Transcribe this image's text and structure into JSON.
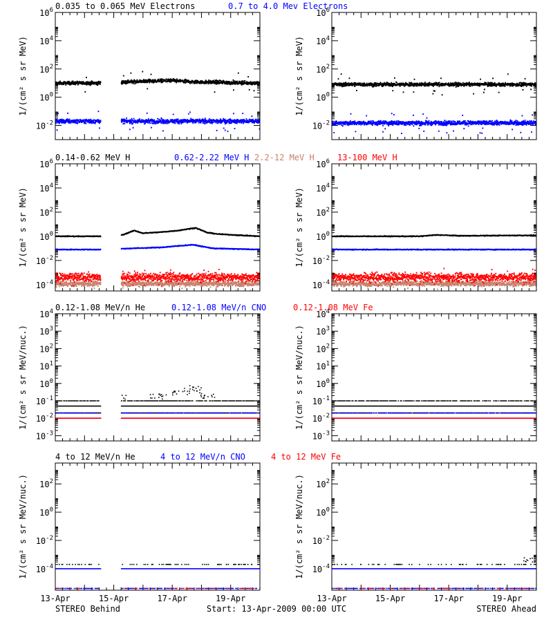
{
  "colors": {
    "black": "#000000",
    "blue": "#0000ff",
    "tan": "#c8826e",
    "red": "#ff0000"
  },
  "footer": {
    "left": "STEREO Behind",
    "center": "Start: 13-Apr-2009 00:00 UTC",
    "right": "STEREO Ahead"
  },
  "chart_data": [
    {
      "type": "scatter",
      "panel": "electrons-behind",
      "title_parts": [
        {
          "text": "0.035 to 0.065 MeV Electrons",
          "color": "black"
        },
        {
          "text": "0.7 to 4.0 Mev Electrons",
          "color": "blue"
        }
      ],
      "ylabel": "1/(cm² s sr MeV)",
      "ylog": true,
      "ylim": [
        0.001,
        1000000
      ],
      "yticks": [
        {
          "v": 0.01,
          "label": "10^-2"
        },
        {
          "v": 1,
          "label": "10^0"
        },
        {
          "v": 100,
          "label": "10^2"
        },
        {
          "v": 10000,
          "label": "10^4"
        },
        {
          "v": 1000000,
          "label": "10^6"
        }
      ],
      "xlim_days": [
        0,
        7
      ],
      "xticks": [],
      "series": [
        {
          "name": "0.035 to 0.065 MeV Electrons",
          "color": "black",
          "style": "band",
          "y": [
            [
              0,
              10
            ],
            [
              1.5,
              10
            ],
            [
              2.4,
              12
            ],
            [
              3.2,
              14
            ],
            [
              4.0,
              15
            ],
            [
              4.8,
              12
            ],
            [
              7,
              10
            ]
          ],
          "scatter": 0.12,
          "gaps": [
            [
              1.55,
              2.25
            ]
          ]
        },
        {
          "name": "0.7 to 4.0 Mev Electrons",
          "color": "blue",
          "style": "band",
          "y": [
            [
              0,
              0.02
            ],
            [
              7,
              0.02
            ]
          ],
          "scatter": 0.15,
          "gaps": [
            [
              1.55,
              2.25
            ]
          ]
        }
      ]
    },
    {
      "type": "scatter",
      "panel": "electrons-ahead",
      "ylabel": "1/(cm² s sr MeV)",
      "ylog": true,
      "ylim": [
        0.001,
        1000000
      ],
      "yticks": [
        {
          "v": 0.01,
          "label": "10^-2"
        },
        {
          "v": 1,
          "label": "10^0"
        },
        {
          "v": 100,
          "label": "10^2"
        },
        {
          "v": 10000,
          "label": "10^4"
        },
        {
          "v": 1000000,
          "label": "10^6"
        }
      ],
      "xlim_days": [
        0,
        7
      ],
      "xticks": [],
      "series": [
        {
          "name": "0.035 to 0.065 MeV Electrons",
          "color": "black",
          "style": "band",
          "y": [
            [
              0,
              8
            ],
            [
              7,
              8
            ]
          ],
          "scatter": 0.12,
          "gaps": []
        },
        {
          "name": "0.7 to 4.0 Mev Electrons",
          "color": "blue",
          "style": "band",
          "y": [
            [
              0,
              0.015
            ],
            [
              7,
              0.015
            ]
          ],
          "scatter": 0.15,
          "gaps": []
        }
      ]
    },
    {
      "type": "scatter",
      "panel": "protons-behind",
      "title_parts": [
        {
          "text": "0.14-0.62 MeV H",
          "color": "black"
        },
        {
          "text": "0.62-2.22 MeV H",
          "color": "blue"
        },
        {
          "text": "2.2-12 MeV H",
          "color": "tan"
        },
        {
          "text": "13-100 MeV H",
          "color": "red"
        }
      ],
      "ylabel": "1/(cm² s sr MeV)",
      "ylog": true,
      "ylim": [
        3e-05,
        1000000
      ],
      "yticks": [
        {
          "v": 0.0001,
          "label": "10^-4"
        },
        {
          "v": 0.01,
          "label": "10^-2"
        },
        {
          "v": 1,
          "label": "10^0"
        },
        {
          "v": 100,
          "label": "10^2"
        },
        {
          "v": 10000,
          "label": "10^4"
        },
        {
          "v": 1000000,
          "label": "10^6"
        }
      ],
      "xlim_days": [
        0,
        7
      ],
      "xticks": [],
      "series": [
        {
          "name": "0.14-0.62 MeV H",
          "color": "black",
          "style": "line",
          "y": [
            [
              0,
              1
            ],
            [
              1.5,
              1
            ],
            [
              2.3,
              1.3
            ],
            [
              2.7,
              3
            ],
            [
              3.0,
              1.8
            ],
            [
              3.6,
              2.2
            ],
            [
              4.2,
              3
            ],
            [
              4.8,
              5
            ],
            [
              5.2,
              2
            ],
            [
              5.6,
              1.5
            ],
            [
              7,
              1
            ]
          ],
          "gaps": [
            [
              1.55,
              2.25
            ]
          ]
        },
        {
          "name": "0.62-2.22 MeV H",
          "color": "blue",
          "style": "line",
          "y": [
            [
              0,
              0.08
            ],
            [
              1.5,
              0.08
            ],
            [
              2.6,
              0.1
            ],
            [
              3.6,
              0.12
            ],
            [
              4.7,
              0.2
            ],
            [
              5.4,
              0.1
            ],
            [
              7,
              0.08
            ]
          ],
          "gaps": [
            [
              1.55,
              2.25
            ]
          ]
        },
        {
          "name": "2.2-12 MeV H",
          "color": "tan",
          "style": "band",
          "y": [
            [
              0,
              0.00012
            ],
            [
              7,
              0.00012
            ]
          ],
          "scatter": 0.2,
          "gaps": [
            [
              1.55,
              2.25
            ]
          ]
        },
        {
          "name": "13-100 MeV H",
          "color": "red",
          "style": "band",
          "y": [
            [
              0,
              0.0004
            ],
            [
              7,
              0.0004
            ]
          ],
          "scatter": 0.35,
          "gaps": [
            [
              1.55,
              2.25
            ]
          ]
        }
      ]
    },
    {
      "type": "scatter",
      "panel": "protons-ahead",
      "ylabel": "1/(cm² s sr MeV)",
      "ylog": true,
      "ylim": [
        3e-05,
        1000000
      ],
      "yticks": [
        {
          "v": 0.0001,
          "label": "10^-4"
        },
        {
          "v": 0.01,
          "label": "10^-2"
        },
        {
          "v": 1,
          "label": "10^0"
        },
        {
          "v": 100,
          "label": "10^2"
        },
        {
          "v": 10000,
          "label": "10^4"
        },
        {
          "v": 1000000,
          "label": "10^6"
        }
      ],
      "xlim_days": [
        0,
        7
      ],
      "xticks": [],
      "series": [
        {
          "name": "0.14-0.62 MeV H",
          "color": "black",
          "style": "line",
          "y": [
            [
              0,
              1
            ],
            [
              3,
              1
            ],
            [
              3.6,
              1.3
            ],
            [
              4.4,
              1.1
            ],
            [
              7,
              1.2
            ]
          ],
          "gaps": []
        },
        {
          "name": "0.62-2.22 MeV H",
          "color": "blue",
          "style": "line",
          "y": [
            [
              0,
              0.08
            ],
            [
              7,
              0.08
            ]
          ],
          "gaps": []
        },
        {
          "name": "2.2-12 MeV H",
          "color": "tan",
          "style": "band",
          "y": [
            [
              0,
              0.00012
            ],
            [
              7,
              0.00012
            ]
          ],
          "scatter": 0.2,
          "gaps": []
        },
        {
          "name": "13-100 MeV H",
          "color": "red",
          "style": "band",
          "y": [
            [
              0,
              0.0004
            ],
            [
              7,
              0.0004
            ]
          ],
          "scatter": 0.35,
          "gaps": []
        }
      ]
    },
    {
      "type": "scatter",
      "panel": "heavy-ions-low-behind",
      "title_parts": [
        {
          "text": "0.12-1.08 MeV/n He",
          "color": "black"
        },
        {
          "text": "0.12-1.08 MeV/n CNO",
          "color": "blue"
        },
        {
          "text": "0.12-1.08 MeV Fe",
          "color": "red"
        }
      ],
      "ylabel": "1/(cm² s sr MeV/nuc.)",
      "ylog": true,
      "ylim": [
        0.0005,
        10000
      ],
      "yticks": [
        {
          "v": 0.001,
          "label": "10^-3"
        },
        {
          "v": 0.01,
          "label": "10^-2"
        },
        {
          "v": 0.1,
          "label": "10^-1"
        },
        {
          "v": 1,
          "label": "10^0"
        },
        {
          "v": 10,
          "label": "10^1"
        },
        {
          "v": 100,
          "label": "10^2"
        },
        {
          "v": 1000,
          "label": "10^3"
        },
        {
          "v": 10000,
          "label": "10^4"
        }
      ],
      "xlim_days": [
        0,
        7
      ],
      "xticks": [],
      "series": [
        {
          "name": "0.12-1.08 MeV/n He",
          "color": "black",
          "style": "levels",
          "levels": [
            0.05,
            0.1,
            0.02
          ],
          "extra": [
            [
              2.2,
              0.15
            ],
            [
              3.5,
              0.18
            ],
            [
              4.3,
              0.3
            ],
            [
              4.7,
              0.5
            ],
            [
              5.2,
              0.2
            ]
          ],
          "gaps": [
            [
              1.55,
              2.25
            ]
          ]
        },
        {
          "name": "0.12-1.08 MeV/n CNO",
          "color": "blue",
          "style": "levels",
          "levels": [
            0.01,
            0.02
          ],
          "gaps": [
            [
              1.55,
              2.25
            ]
          ]
        },
        {
          "name": "0.12-1.08 MeV Fe",
          "color": "red",
          "style": "levels",
          "levels": [
            0.01
          ],
          "gaps": [
            [
              1.55,
              2.25
            ]
          ]
        }
      ]
    },
    {
      "type": "scatter",
      "panel": "heavy-ions-low-ahead",
      "ylabel": "1/(cm² s sr MeV/nuc.)",
      "ylog": true,
      "ylim": [
        0.0005,
        10000
      ],
      "yticks": [
        {
          "v": 0.001,
          "label": "10^-3"
        },
        {
          "v": 0.01,
          "label": "10^-2"
        },
        {
          "v": 0.1,
          "label": "10^-1"
        },
        {
          "v": 1,
          "label": "10^0"
        },
        {
          "v": 10,
          "label": "10^1"
        },
        {
          "v": 100,
          "label": "10^2"
        },
        {
          "v": 1000,
          "label": "10^3"
        },
        {
          "v": 10000,
          "label": "10^4"
        }
      ],
      "xlim_days": [
        0,
        7
      ],
      "xticks": [],
      "series": [
        {
          "name": "0.12-1.08 MeV/n He",
          "color": "black",
          "style": "levels",
          "levels": [
            0.05,
            0.1,
            0.02
          ],
          "extra": [],
          "gaps": []
        },
        {
          "name": "0.12-1.08 MeV/n CNO",
          "color": "blue",
          "style": "levels",
          "levels": [
            0.01,
            0.02
          ],
          "gaps": []
        },
        {
          "name": "0.12-1.08 MeV Fe",
          "color": "red",
          "style": "levels",
          "levels": [
            0.01
          ],
          "gaps": []
        }
      ]
    },
    {
      "type": "scatter",
      "panel": "heavy-ions-high-behind",
      "title_parts": [
        {
          "text": "4 to 12 MeV/n He",
          "color": "black"
        },
        {
          "text": "4 to 12 MeV/n CNO",
          "color": "blue"
        },
        {
          "text": "4 to 12 MeV Fe",
          "color": "red"
        }
      ],
      "ylabel": "1/(cm² s sr MeV/nuc.)",
      "ylog": true,
      "ylim": [
        3e-06,
        3000
      ],
      "yticks": [
        {
          "v": 0.0001,
          "label": "10^-4"
        },
        {
          "v": 0.01,
          "label": "10^-2"
        },
        {
          "v": 1,
          "label": "10^0"
        },
        {
          "v": 100,
          "label": "10^2"
        }
      ],
      "xlim_days": [
        0,
        7
      ],
      "xticks": [
        {
          "v": 0,
          "label": "13-Apr"
        },
        {
          "v": 2,
          "label": "15-Apr"
        },
        {
          "v": 4,
          "label": "17-Apr"
        },
        {
          "v": 6,
          "label": "19-Apr"
        }
      ],
      "series": [
        {
          "name": "4 to 12 MeV/n He",
          "color": "black",
          "style": "levels",
          "levels": [
            0.0002
          ],
          "extra": [],
          "sparse": true,
          "gaps": [
            [
              1.55,
              2.25
            ]
          ]
        },
        {
          "name": "4 to 12 MeV/n CNO",
          "color": "blue",
          "style": "levels",
          "levels": [
            0.0001,
            4e-06
          ],
          "gaps": [
            [
              1.55,
              2.25
            ]
          ]
        },
        {
          "name": "4 to 12 MeV Fe",
          "color": "red",
          "style": "levels",
          "levels": [
            4e-06
          ],
          "sparse": true,
          "gaps": [
            [
              1.55,
              2.25
            ]
          ]
        }
      ]
    },
    {
      "type": "scatter",
      "panel": "heavy-ions-high-ahead",
      "ylabel": "1/(cm² s sr MeV/nuc.)",
      "ylog": true,
      "ylim": [
        3e-06,
        3000
      ],
      "yticks": [
        {
          "v": 0.0001,
          "label": "10^-4"
        },
        {
          "v": 0.01,
          "label": "10^-2"
        },
        {
          "v": 1,
          "label": "10^0"
        },
        {
          "v": 100,
          "label": "10^2"
        }
      ],
      "xlim_days": [
        0,
        7
      ],
      "xticks": [
        {
          "v": 0,
          "label": "13-Apr"
        },
        {
          "v": 2,
          "label": "15-Apr"
        },
        {
          "v": 4,
          "label": "17-Apr"
        },
        {
          "v": 6,
          "label": "19-Apr"
        }
      ],
      "series": [
        {
          "name": "4 to 12 MeV/n He",
          "color": "black",
          "style": "levels",
          "levels": [
            0.0002
          ],
          "extra": [
            [
              6.8,
              0.0004
            ]
          ],
          "sparse": true,
          "gaps": []
        },
        {
          "name": "4 to 12 MeV/n CNO",
          "color": "blue",
          "style": "levels",
          "levels": [
            0.0001,
            4e-06
          ],
          "gaps": []
        },
        {
          "name": "4 to 12 MeV Fe",
          "color": "red",
          "style": "levels",
          "levels": [
            4e-06
          ],
          "sparse": true,
          "gaps": []
        }
      ]
    }
  ]
}
